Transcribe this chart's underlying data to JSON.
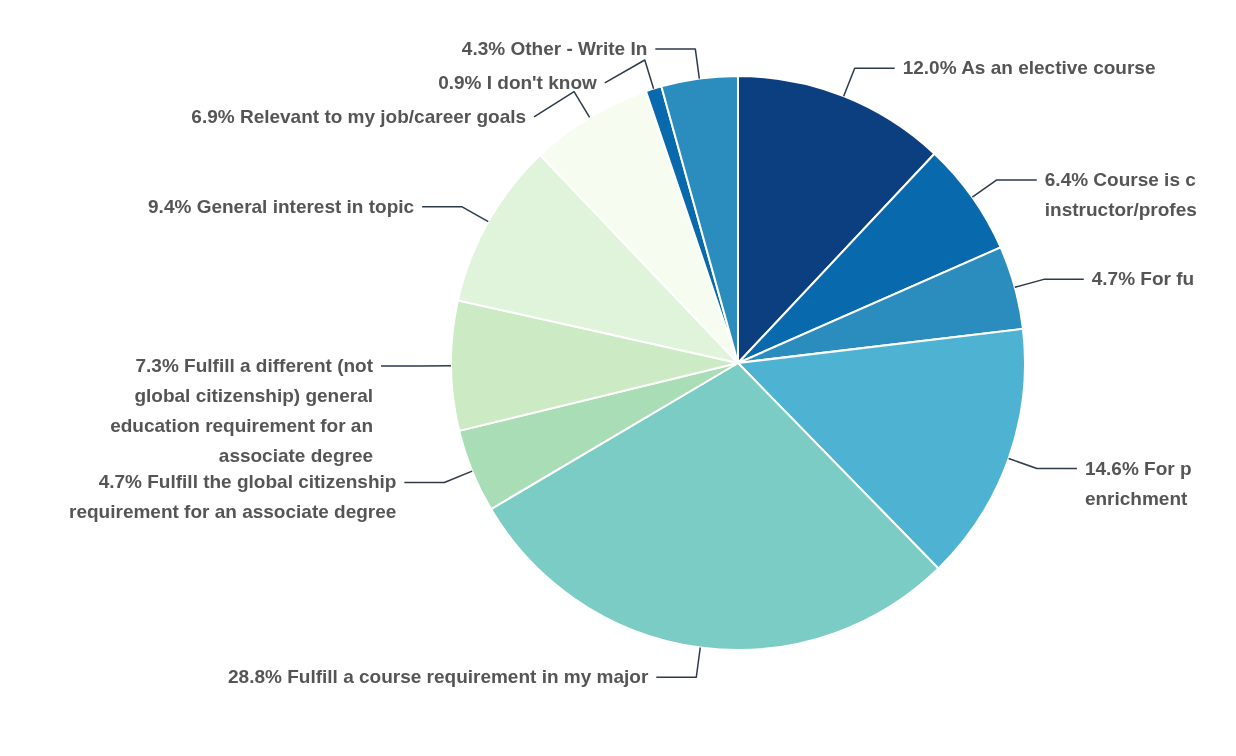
{
  "chart_data": {
    "type": "pie",
    "categories": [
      "As an elective course",
      "Course is c instructor/profes",
      "For fu",
      "For p enrichment",
      "Fulfill a course requirement in my major",
      "Fulfill the global citizenship requirement for an associate degree",
      "Fulfill a different (not global citizenship) general education requirement for an associate degree",
      "General interest in topic",
      "Relevant to my job/career goals",
      "I don't know",
      "Other - Write In"
    ],
    "values": [
      12.0,
      6.4,
      4.7,
      14.6,
      28.8,
      4.7,
      7.3,
      9.4,
      6.9,
      0.9,
      4.3
    ],
    "value_labels": [
      "12.0%",
      "6.4%",
      "4.7%",
      "14.6%",
      "28.8%",
      "4.7%",
      "7.3%",
      "9.4%",
      "6.9%",
      "0.9%",
      "4.3%"
    ],
    "colors": [
      "#0b3f80",
      "#0869ad",
      "#2b8cbe",
      "#4eb3d3",
      "#7bccc4",
      "#a8ddb5",
      "#ccebc5",
      "#e0f3db",
      "#f7fcf0",
      "#0869ad",
      "#2b8cbe"
    ]
  }
}
